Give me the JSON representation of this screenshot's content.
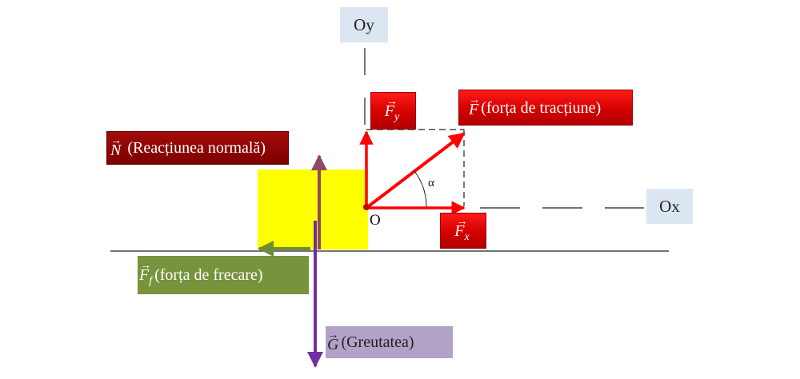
{
  "axes": {
    "oy": "Oy",
    "ox": "Ox",
    "origin": "O",
    "angle": "α"
  },
  "vectors": {
    "traction": {
      "symbol": "F",
      "sub": "",
      "text": "(forța de tracțiune)"
    },
    "fy": {
      "symbol": "F",
      "sub": "y",
      "text": ""
    },
    "fx": {
      "symbol": "F",
      "sub": "x",
      "text": ""
    },
    "normal": {
      "symbol": "N",
      "sub": "",
      "text": " (Reacțiunea normală)"
    },
    "friction": {
      "symbol": "F",
      "sub": "f",
      "text": "(forța de frecare)"
    },
    "weight": {
      "symbol": "G",
      "sub": "",
      "text": "(Greutatea)"
    },
    "arrow": "→"
  },
  "colors": {
    "force_red": "#ff0000",
    "normal_arrow": "#8e4a63",
    "weight_arrow": "#7030a0",
    "friction_arrow": "#6f8d34",
    "block": "#ffff00"
  }
}
